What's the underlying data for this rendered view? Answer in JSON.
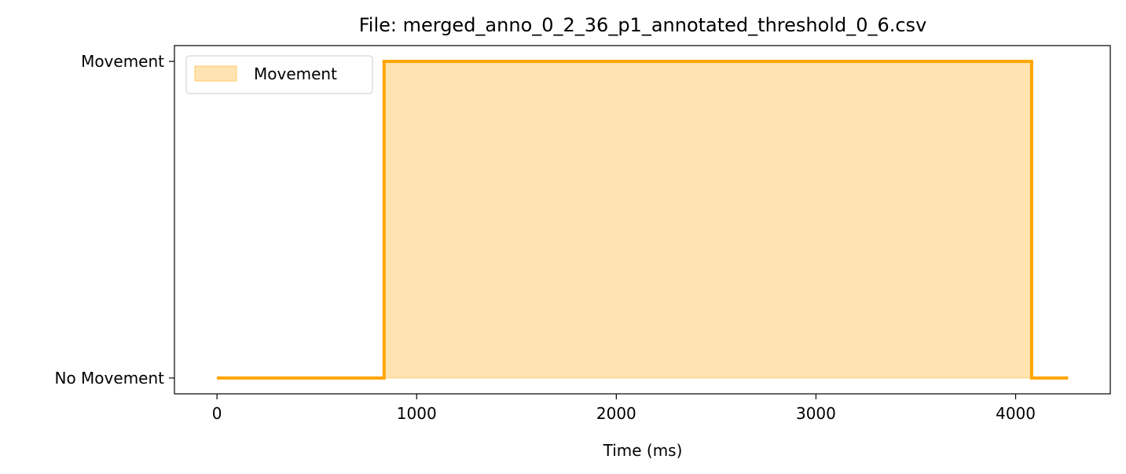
{
  "chart_data": {
    "type": "area",
    "title": "File: merged_anno_0_2_36_p1_annotated_threshold_0_6.csv",
    "xlabel": "Time (ms)",
    "ylabel": "",
    "x_ticks": [
      0,
      1000,
      2000,
      3000,
      4000
    ],
    "x_tick_labels": [
      "0",
      "1000",
      "2000",
      "3000",
      "4000"
    ],
    "y_ticks": [
      0,
      1
    ],
    "y_tick_labels": [
      "No Movement",
      "Movement"
    ],
    "xlim": [
      -213,
      4474
    ],
    "ylim": [
      -0.05,
      1.05
    ],
    "grid": false,
    "legend": {
      "placement": "top-left",
      "entries": [
        "Movement"
      ]
    },
    "series": [
      {
        "name": "Movement",
        "step": true,
        "line_color": "#FFA500",
        "fill_color": "#FFA500",
        "fill_alpha": 0.3,
        "x": [
          0,
          837,
          837,
          4080,
          4080,
          4263
        ],
        "values": [
          0,
          0,
          1,
          1,
          0,
          0
        ]
      }
    ]
  }
}
